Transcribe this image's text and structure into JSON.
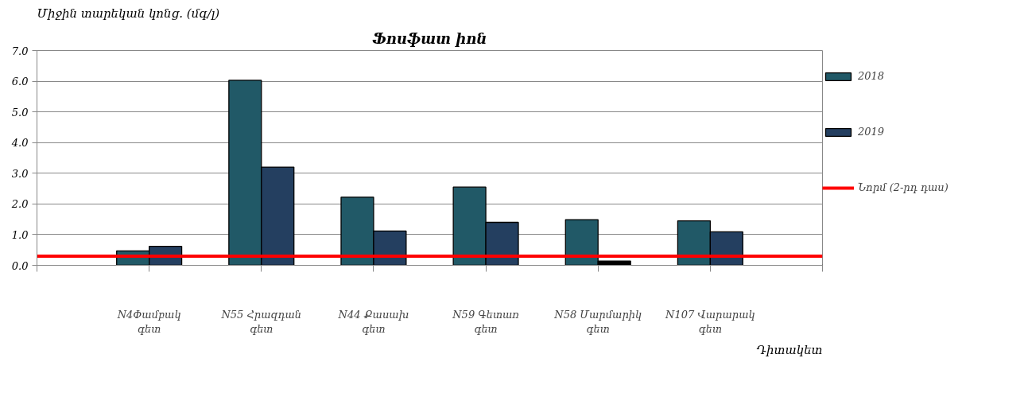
{
  "chart_data": {
    "type": "bar",
    "title": "Ֆոսֆատ իոն",
    "ylabel": "Միջին տարեկան կոնց. (մգ/լ)",
    "xlabel": "Դիտակետ",
    "categories": [
      "N4Փամբակ գետ",
      "N55 Հրազդան գետ",
      "N44 Քասախ գետ",
      "N59 Գետառ գետ",
      "N58 Մարմարիկ գետ",
      "N107 Վարարակ գետ"
    ],
    "series": [
      {
        "name": "2018",
        "color": "#215967",
        "values": [
          0.47,
          6.03,
          2.22,
          2.55,
          1.49,
          1.45
        ]
      },
      {
        "name": "2019",
        "color": "#243f60",
        "colors": [
          "#243f60",
          "#243f60",
          "#243f60",
          "#243f60",
          "#000000",
          "#243f60"
        ],
        "values": [
          0.62,
          3.2,
          1.12,
          1.4,
          0.14,
          1.09
        ]
      }
    ],
    "ref_lines": [
      {
        "axis": "y",
        "value": 0.3,
        "label": "Նորմ (2-րդ դաս)",
        "color": "#ff0000"
      }
    ],
    "ylim": [
      0,
      7
    ],
    "yticks": [
      {
        "value": 0,
        "label": "0.0"
      },
      {
        "value": 1,
        "label": "1.0"
      },
      {
        "value": 2,
        "label": "2.0"
      },
      {
        "value": 3,
        "label": "3.0"
      },
      {
        "value": 4,
        "label": "4.0"
      },
      {
        "value": 5,
        "label": "5.0"
      },
      {
        "value": 6,
        "label": "6.0"
      },
      {
        "value": 7,
        "label": "7.0"
      }
    ],
    "grid": "y",
    "legend": "right"
  }
}
